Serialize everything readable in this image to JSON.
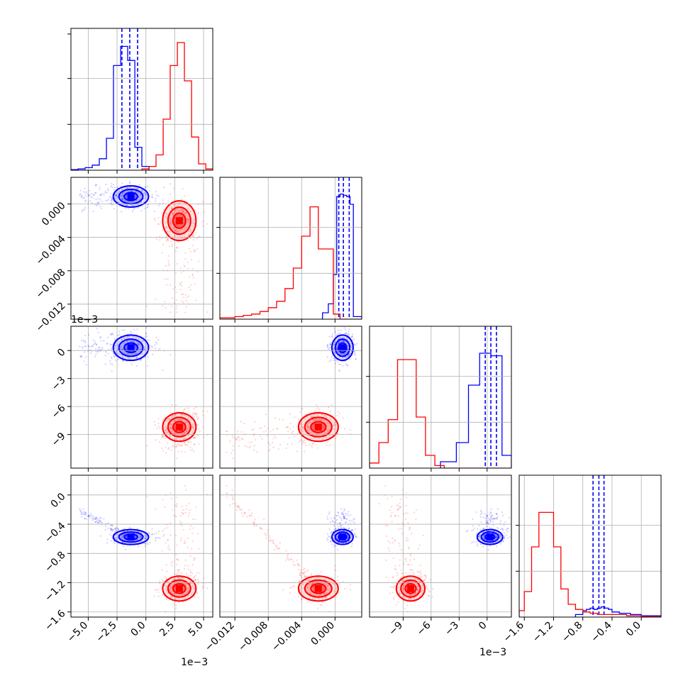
{
  "chart_data": {
    "type": "scatter",
    "subtype": "corner-plot",
    "parameters": 4,
    "colors": {
      "series_a": "#0000ff",
      "series_b": "#ff0000"
    },
    "grid": true,
    "axes": {
      "p0": {
        "range": [
          -6.5,
          5.8
        ],
        "ticks": [
          "−5.0",
          "−2.5",
          "0.0",
          "2.5",
          "5.0"
        ],
        "tick_values": [
          -5.0,
          -2.5,
          0.0,
          2.5,
          5.0
        ],
        "offset_label": "1e−3"
      },
      "p1": {
        "range": [
          -0.0138,
          0.0032
        ],
        "ticks": [
          "−0.012",
          "−0.008",
          "−0.004",
          "0.000"
        ],
        "tick_values": [
          -0.012,
          -0.008,
          -0.004,
          0.0
        ]
      },
      "p2": {
        "range": [
          -12.6,
          2.6
        ],
        "ticks": [
          "−9",
          "−6",
          "−3",
          "0"
        ],
        "tick_values": [
          -9,
          -6,
          -3,
          0
        ],
        "offset_label": "1e−3"
      },
      "p3": {
        "range": [
          -1.67,
          0.27
        ],
        "ticks": [
          "0.0",
          "−0.4",
          "−0.8",
          "−1.2",
          "−1.6"
        ],
        "tick_values": [
          0.0,
          -0.4,
          -0.8,
          -1.2,
          -1.6
        ]
      }
    },
    "series": [
      {
        "color": "#0000ff",
        "centers": [
          -1.3,
          0.0009,
          0.3,
          -0.575
        ],
        "hist_edges": [
          [
            -6.5,
            -5.88,
            -5.27,
            -4.65,
            -4.04,
            -3.42,
            -2.81,
            -2.19,
            -1.58,
            -0.96,
            -0.35,
            0.27
          ],
          [
            -0.0015,
            -0.0008,
            -0.0002,
            0.0002,
            0.0006,
            0.001,
            0.0014,
            0.0018,
            0.0022,
            0.0032
          ],
          [
            -5.0,
            -3.3,
            -2.0,
            -0.8,
            0.4,
            1.6,
            2.6
          ],
          [
            -0.9,
            -0.8,
            -0.75,
            -0.7,
            -0.65,
            -0.6,
            -0.55,
            -0.5,
            -0.45,
            -0.4,
            -0.3,
            -0.15,
            0.0,
            0.27
          ]
        ],
        "hist_counts": [
          [
            0.005,
            0.01,
            0.02,
            0.04,
            0.09,
            0.25,
            0.82,
            0.97,
            0.86,
            0.18,
            0.03
          ],
          [
            0.05,
            0.12,
            0.35,
            0.96,
            0.98,
            0.97,
            0.96,
            0.9,
            0.02
          ],
          [
            0.05,
            0.2,
            0.65,
            0.9,
            0.88,
            0.1
          ],
          [
            0.02,
            0.05,
            0.06,
            0.07,
            0.06,
            0.07,
            0.08,
            0.07,
            0.06,
            0.04,
            0.03,
            0.02,
            0.01
          ]
        ],
        "quantiles": [
          [
            -2.08,
            -1.4,
            -0.72
          ],
          [
            0.00045,
            0.001,
            0.0017
          ],
          [
            -0.2,
            0.4,
            1.0
          ],
          [
            -0.66,
            -0.58,
            -0.51
          ]
        ]
      },
      {
        "color": "#ff0000",
        "centers": [
          2.9,
          -0.002,
          -8.2,
          -1.28
        ],
        "hist_edges": [
          [
            -0.35,
            0.27,
            0.88,
            1.5,
            2.11,
            2.73,
            3.34,
            3.96,
            4.57,
            5.19,
            5.8
          ],
          [
            -0.0138,
            -0.012,
            -0.011,
            -0.01,
            -0.009,
            -0.008,
            -0.007,
            -0.006,
            -0.005,
            -0.004,
            -0.003,
            -0.002,
            -0.0002,
            0.0006,
            0.0032
          ],
          [
            -12.6,
            -11.6,
            -10.6,
            -9.6,
            -8.6,
            -7.6,
            -6.6,
            -5.6,
            -4.6,
            -3.6,
            2.6
          ],
          [
            -1.67,
            -1.6,
            -1.5,
            -1.4,
            -1.3,
            -1.2,
            -1.1,
            -1.0,
            -0.9,
            -0.8,
            -0.7,
            -0.6,
            -0.4,
            -0.2,
            0.0,
            0.27
          ]
        ],
        "hist_counts": [
          [
            0.01,
            0.03,
            0.12,
            0.4,
            0.82,
            1.0,
            0.7,
            0.26,
            0.05,
            0.01
          ],
          [
            0.01,
            0.02,
            0.03,
            0.04,
            0.06,
            0.09,
            0.14,
            0.24,
            0.4,
            0.65,
            0.88,
            0.55,
            0.04,
            0.0
          ],
          [
            0.04,
            0.2,
            0.38,
            0.85,
            0.85,
            0.4,
            0.1,
            0.02,
            0.0,
            0.0
          ],
          [
            0.05,
            0.2,
            0.55,
            0.82,
            0.82,
            0.55,
            0.22,
            0.1,
            0.06,
            0.04,
            0.03,
            0.02,
            0.02,
            0.01,
            0.005
          ]
        ]
      }
    ],
    "scatter": [
      {
        "color": "#0000ff",
        "mean": [
          -1.3,
          0.0009,
          0.3,
          -0.575
        ],
        "sd": [
          0.9,
          0.00075,
          0.8,
          0.06
        ],
        "tail": "left",
        "count": 340
      },
      {
        "color": "#ff0000",
        "mean": [
          2.9,
          -0.002,
          -8.2,
          -1.28
        ],
        "sd": [
          0.85,
          0.0014,
          0.9,
          0.1
        ],
        "tail": "down",
        "count": 340
      }
    ]
  }
}
